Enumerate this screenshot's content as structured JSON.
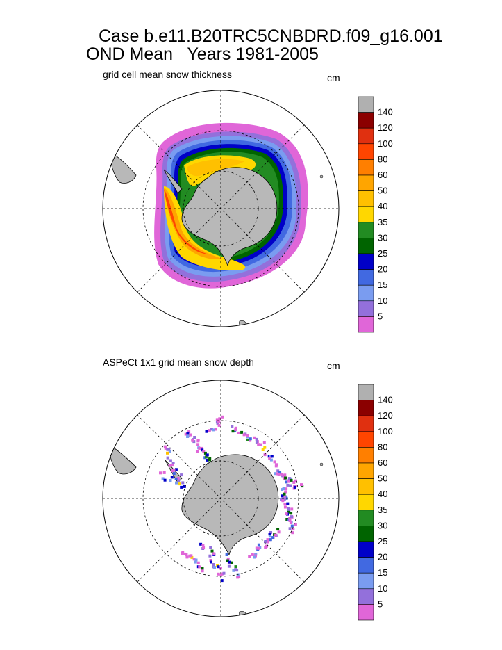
{
  "title_line1": "Case b.e11.B20TRC5CNBDRD.f09_g16.001",
  "title_line2": "OND Mean   Years 1981-2005",
  "chart_data": [
    {
      "type": "heatmap",
      "projection": "south polar stereographic",
      "title": "grid cell mean snow thickness",
      "units": "cm",
      "colorbar_levels": [
        5,
        10,
        15,
        20,
        25,
        30,
        35,
        40,
        50,
        60,
        80,
        100,
        120,
        140
      ],
      "colorbar_colors": [
        "#e066d8",
        "#9370db",
        "#7a9cf0",
        "#4169e1",
        "#0000c8",
        "#006400",
        "#228b22",
        "#ffd700",
        "#ffc000",
        "#ffa500",
        "#ff7f00",
        "#ff4500",
        "#e03010",
        "#8b0000",
        "#b0b0b0"
      ],
      "land_color": "#b8b8b8"
    },
    {
      "type": "heatmap",
      "projection": "south polar stereographic",
      "title": "ASPeCt 1x1 grid mean snow depth",
      "units": "cm",
      "colorbar_levels": [
        5,
        10,
        15,
        20,
        25,
        30,
        35,
        40,
        50,
        60,
        80,
        100,
        120,
        140
      ],
      "colorbar_colors": [
        "#e066d8",
        "#9370db",
        "#7a9cf0",
        "#4169e1",
        "#0000c8",
        "#006400",
        "#228b22",
        "#ffd700",
        "#ffc000",
        "#ffa500",
        "#ff7f00",
        "#ff4500",
        "#e03010",
        "#8b0000",
        "#b0b0b0"
      ],
      "land_color": "#b8b8b8"
    }
  ]
}
